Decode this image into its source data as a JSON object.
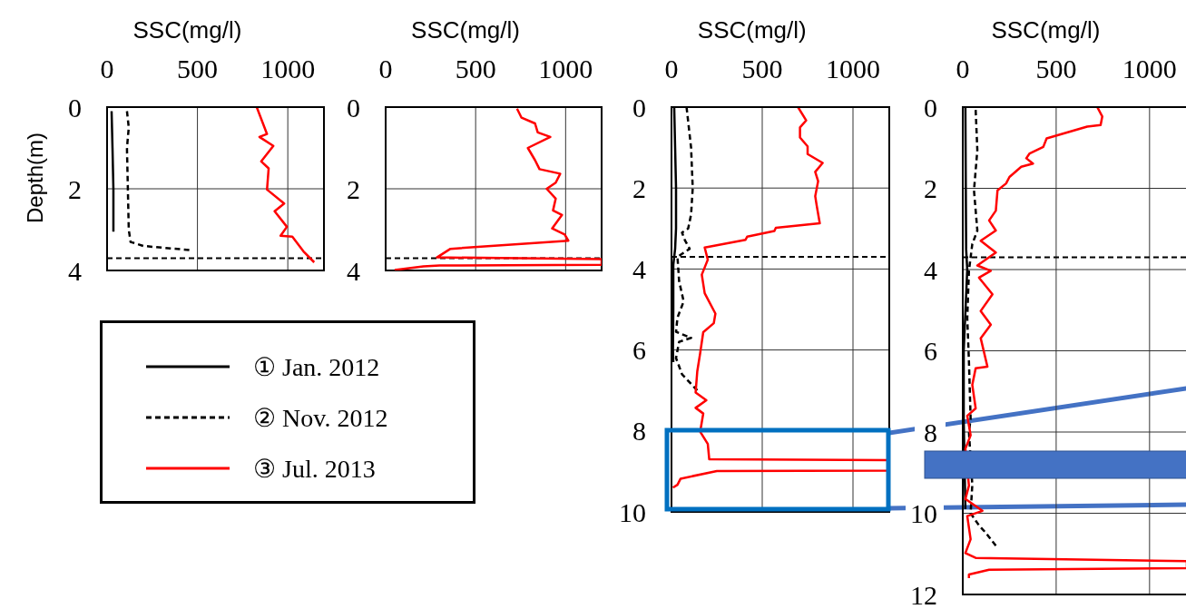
{
  "chart_data": [
    {
      "type": "line",
      "xlabel": "SSC(mg/l)",
      "ylabel": "Depth(m)",
      "xlim": [
        0,
        1200
      ],
      "xticks": [
        0,
        500,
        1000
      ],
      "ylim": [
        4,
        0
      ],
      "yticks": [
        0,
        2,
        4
      ],
      "grid": true,
      "legend": "bottom",
      "marker": "none",
      "ref_lines": [
        {
          "axis": "y",
          "value": 3.7,
          "line_style": "dashed",
          "color": "#000000"
        }
      ],
      "series": [
        {
          "name": "① Jan. 2012",
          "color": "#000000",
          "line_style": "solid",
          "x": [
            25,
            30,
            35,
            35
          ],
          "values": [
            0.1,
            1,
            2,
            3.05
          ]
        },
        {
          "name": "② Nov. 2012",
          "color": "#000000",
          "line_style": "dashed",
          "x": [
            110,
            120,
            110,
            115,
            120,
            130,
            200,
            455
          ],
          "values": [
            0.1,
            0.5,
            1,
            2,
            3,
            3.3,
            3.4,
            3.5
          ]
        },
        {
          "name": "③ Jul. 2013",
          "color": "#ff0000",
          "line_style": "solid",
          "x": [
            828,
            885,
            843,
            920,
            853,
            894,
            885,
            980,
            927,
            995,
            960,
            1025,
            1086,
            1146
          ],
          "values": [
            0,
            0.66,
            0.73,
            0.95,
            1.33,
            1.5,
            2.02,
            2.36,
            2.55,
            2.93,
            3.15,
            3.17,
            3.53,
            3.8
          ]
        }
      ]
    },
    {
      "type": "line",
      "xlabel": "SSC(mg/l)",
      "xlim": [
        0,
        1200
      ],
      "xticks": [
        0,
        500,
        1000
      ],
      "ylim": [
        4,
        0
      ],
      "yticks": [
        0,
        2,
        4
      ],
      "grid": true,
      "marker": "none",
      "ref_lines": [
        {
          "axis": "y",
          "value": 3.7,
          "line_style": "dashed",
          "color": "#000000"
        }
      ],
      "series": [
        {
          "color": "#ff0000",
          "line_style": "solid",
          "x": [
            730,
            755,
            830,
            845,
            915,
            790,
            830,
            855,
            970,
            945,
            895,
            945,
            930,
            980,
            925,
            995,
            1015,
            360,
            285,
            1200,
            1200,
            300,
            210,
            50
          ],
          "values": [
            0.04,
            0.26,
            0.4,
            0.62,
            0.73,
            1,
            1.3,
            1.52,
            1.63,
            1.85,
            2,
            2.24,
            2.53,
            2.64,
            2.97,
            3.12,
            3.27,
            3.47,
            3.68,
            3.72,
            3.86,
            3.88,
            3.9,
            3.99
          ]
        }
      ]
    },
    {
      "type": "line",
      "xlabel": "SSC(mg/l)",
      "xlim": [
        0,
        1200
      ],
      "xticks": [
        0,
        500,
        1000
      ],
      "ylim": [
        10,
        0
      ],
      "yticks": [
        0,
        2,
        4,
        6,
        8,
        10
      ],
      "grid": true,
      "marker": "none",
      "ref_lines": [
        {
          "axis": "y",
          "value": 3.7,
          "line_style": "dashed",
          "color": "#000000"
        }
      ],
      "series": [
        {
          "color": "#000000",
          "line_style": "solid",
          "x": [
            15,
            20,
            25,
            25,
            20,
            10,
            10,
            8,
            10
          ],
          "values": [
            0,
            1,
            2,
            3,
            3.5,
            3.9,
            5,
            6,
            6.3
          ]
        },
        {
          "color": "#000000",
          "line_style": "dashed",
          "x": [
            83,
            108,
            117,
            108,
            92,
            58,
            75,
            100,
            67,
            33,
            42,
            67,
            33,
            25,
            108,
            42,
            25,
            58,
            142
          ],
          "values": [
            0,
            1,
            2,
            2.65,
            3,
            3.1,
            3.3,
            3.5,
            3.6,
            3.7,
            4.3,
            4.8,
            5.2,
            5.55,
            5.7,
            5.8,
            6.2,
            6.6,
            7
          ]
        },
        {
          "color": "#ff0000",
          "line_style": "solid",
          "x": [
            697,
            742,
            708,
            708,
            750,
            750,
            833,
            792,
            808,
            792,
            800,
            817,
            575,
            567,
            417,
            408,
            183,
            200,
            167,
            183,
            242,
            233,
            175,
            158,
            142,
            133,
            192,
            133,
            175,
            158,
            200,
            208,
            1200,
            1200,
            250,
            50,
            33,
            8
          ],
          "values": [
            0,
            0.33,
            0.5,
            0.75,
            0.97,
            1.16,
            1.38,
            1.6,
            1.83,
            2.2,
            2.43,
            2.87,
            2.98,
            3.06,
            3.2,
            3.28,
            3.47,
            3.77,
            4.14,
            4.6,
            5.1,
            5.34,
            5.56,
            6.08,
            6.53,
            7.05,
            7.24,
            7.43,
            7.57,
            8.02,
            8.32,
            8.7,
            8.72,
            8.98,
            8.99,
            9.18,
            9.33,
            9.4
          ]
        }
      ]
    },
    {
      "type": "line",
      "xlabel": "SSC(mg/l)",
      "xlim": [
        0,
        1200
      ],
      "xticks": [
        0,
        500,
        1000
      ],
      "ylim": [
        12,
        0
      ],
      "yticks": [
        0,
        2,
        4,
        6,
        8,
        10,
        12
      ],
      "grid": true,
      "marker": "none",
      "ref_lines": [
        {
          "axis": "y",
          "value": 3.7,
          "line_style": "dashed",
          "color": "#000000"
        }
      ],
      "series": [
        {
          "color": "#000000",
          "line_style": "solid",
          "x": [
            14,
            18,
            24,
            5,
            5,
            14
          ],
          "values": [
            0,
            3.5,
            4,
            6,
            7.7,
            9.9
          ]
        },
        {
          "color": "#000000",
          "line_style": "dashed",
          "x": [
            69,
            78,
            60,
            78,
            51,
            33,
            24,
            33,
            42,
            33,
            51,
            42,
            87,
            123,
            177
          ],
          "values": [
            0.07,
            1.06,
            2.05,
            3.04,
            3.37,
            4.03,
            5.2,
            6.26,
            7.67,
            8,
            9.3,
            10,
            10.3,
            10.48,
            10.8
          ]
        },
        {
          "color": "#ff0000",
          "line_style": "solid",
          "x": [
            720,
            747,
            738,
            666,
            449,
            431,
            358,
            340,
            376,
            313,
            250,
            232,
            186,
            177,
            141,
            177,
            96,
            177,
            78,
            150,
            87,
            159,
            96,
            150,
            96,
            132,
            69,
            51,
            69,
            24,
            42,
            14,
            33,
            14,
            105,
            24,
            42,
            14,
            69,
            1200,
            1200,
            141,
            33,
            33
          ],
          "values": [
            0,
            0.23,
            0.44,
            0.48,
            0.77,
            0.98,
            1.14,
            1.26,
            1.39,
            1.47,
            1.72,
            1.88,
            2.05,
            2.55,
            2.79,
            3.04,
            3.29,
            3.58,
            3.9,
            4.03,
            4.2,
            4.61,
            5.02,
            5.36,
            5.69,
            6.39,
            6.43,
            6.84,
            7.42,
            7.6,
            8.08,
            8.41,
            9.32,
            9.65,
            9.94,
            10.07,
            10.64,
            10.98,
            11.1,
            11.18,
            11.35,
            11.39,
            11.51,
            11.6
          ]
        }
      ]
    }
  ]
}
